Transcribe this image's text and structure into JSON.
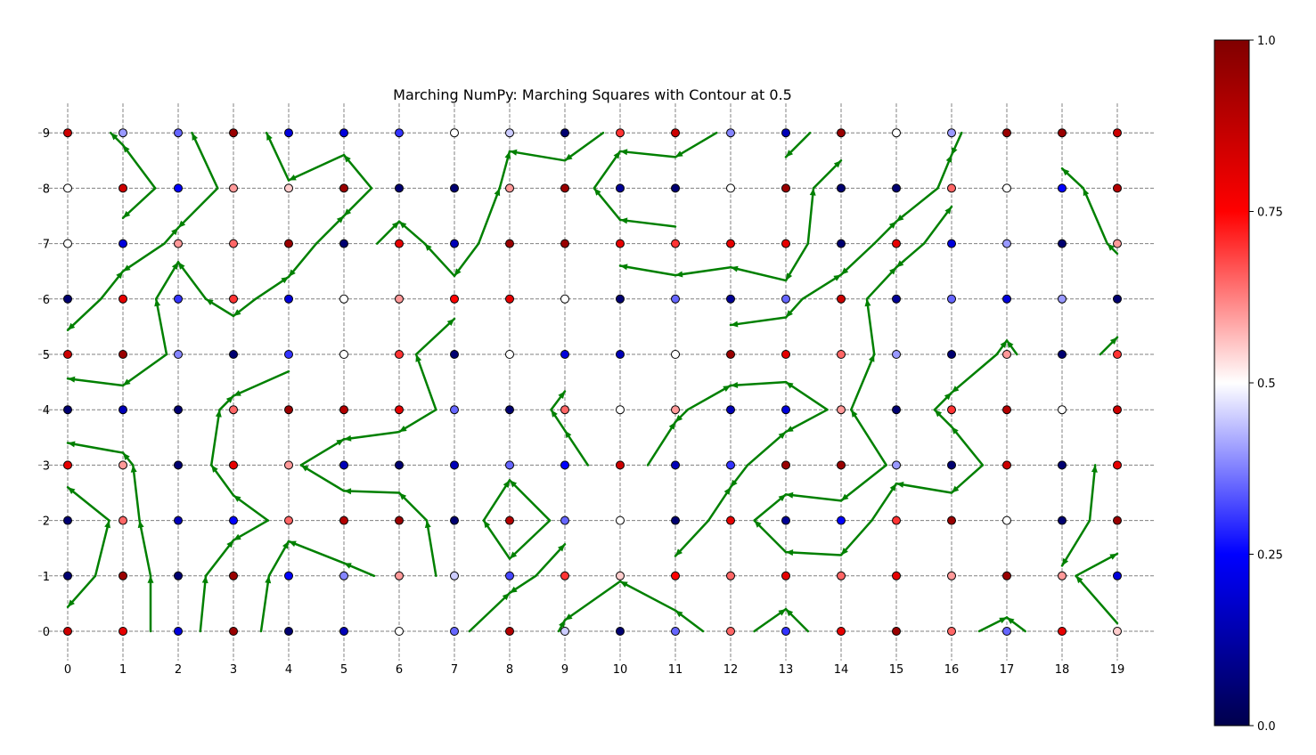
{
  "chart_data": {
    "type": "scatter",
    "title": "Marching NumPy: Marching Squares with Contour at 0.5",
    "xlabel": "",
    "ylabel": "",
    "xlim": [
      -0.5,
      19.5
    ],
    "ylim": [
      -0.5,
      9.5
    ],
    "x_ticks": [
      "0",
      "1",
      "2",
      "3",
      "4",
      "5",
      "6",
      "7",
      "8",
      "9",
      "10",
      "11",
      "12",
      "13",
      "14",
      "15",
      "16",
      "17",
      "18",
      "19"
    ],
    "y_ticks": [
      "0",
      "1",
      "2",
      "3",
      "4",
      "5",
      "6",
      "7",
      "8",
      "9"
    ],
    "grid": true,
    "grid_style": "dashed",
    "colormap": "seismic",
    "color_range": [
      0,
      1
    ],
    "colorbar_ticks": [
      "0.0",
      "0.25",
      "0.5",
      "0.75",
      "1.0"
    ],
    "contour_level": 0.5,
    "contour_color": "#008000",
    "grid_values": [
      [
        0.85,
        0.8,
        0.2,
        0.95,
        0.05,
        0.15,
        0.5,
        0.35,
        0.9,
        0.45,
        0.05,
        0.35,
        0.65,
        0.3,
        0.8,
        0.95,
        0.65,
        0.35,
        0.8,
        0.55
      ],
      [
        0.05,
        0.95,
        0.05,
        0.95,
        0.25,
        0.38,
        0.6,
        0.45,
        0.32,
        0.7,
        0.55,
        0.75,
        0.65,
        0.8,
        0.65,
        0.8,
        0.6,
        0.95,
        0.6,
        0.2
      ],
      [
        0.05,
        0.65,
        0.15,
        0.25,
        0.65,
        0.9,
        0.95,
        0.05,
        0.9,
        0.35,
        0.5,
        0.05,
        0.8,
        0.1,
        0.25,
        0.7,
        0.95,
        0.5,
        0.05,
        0.95
      ],
      [
        0.8,
        0.6,
        0.05,
        0.8,
        0.6,
        0.15,
        0.05,
        0.15,
        0.35,
        0.25,
        0.85,
        0.15,
        0.3,
        0.95,
        0.95,
        0.4,
        0.05,
        0.85,
        0.05,
        0.8
      ],
      [
        0.05,
        0.15,
        0.05,
        0.65,
        0.95,
        0.9,
        0.8,
        0.35,
        0.05,
        0.65,
        0.5,
        0.6,
        0.15,
        0.2,
        0.6,
        0.05,
        0.7,
        0.9,
        0.5,
        0.85
      ],
      [
        0.85,
        0.95,
        0.38,
        0.05,
        0.3,
        0.5,
        0.7,
        0.05,
        0.5,
        0.2,
        0.15,
        0.5,
        0.95,
        0.8,
        0.65,
        0.4,
        0.05,
        0.6,
        0.05,
        0.7
      ],
      [
        0.05,
        0.8,
        0.3,
        0.7,
        0.2,
        0.5,
        0.6,
        0.75,
        0.8,
        0.5,
        0.05,
        0.35,
        0.1,
        0.35,
        0.85,
        0.1,
        0.35,
        0.2,
        0.4,
        0.05
      ],
      [
        0.5,
        0.2,
        0.6,
        0.65,
        0.95,
        0.05,
        0.8,
        0.15,
        0.95,
        0.95,
        0.8,
        0.7,
        0.8,
        0.8,
        0.05,
        0.8,
        0.2,
        0.4,
        0.05,
        0.6
      ],
      [
        0.5,
        0.85,
        0.25,
        0.6,
        0.55,
        0.95,
        0.05,
        0.05,
        0.6,
        0.95,
        0.1,
        0.05,
        0.5,
        0.95,
        0.05,
        0.05,
        0.65,
        0.5,
        0.25,
        0.9
      ],
      [
        0.85,
        0.4,
        0.35,
        0.95,
        0.2,
        0.2,
        0.3,
        0.5,
        0.45,
        0.05,
        0.7,
        0.85,
        0.38,
        0.15,
        0.95,
        0.5,
        0.4,
        0.95,
        0.95,
        0.85
      ]
    ]
  }
}
